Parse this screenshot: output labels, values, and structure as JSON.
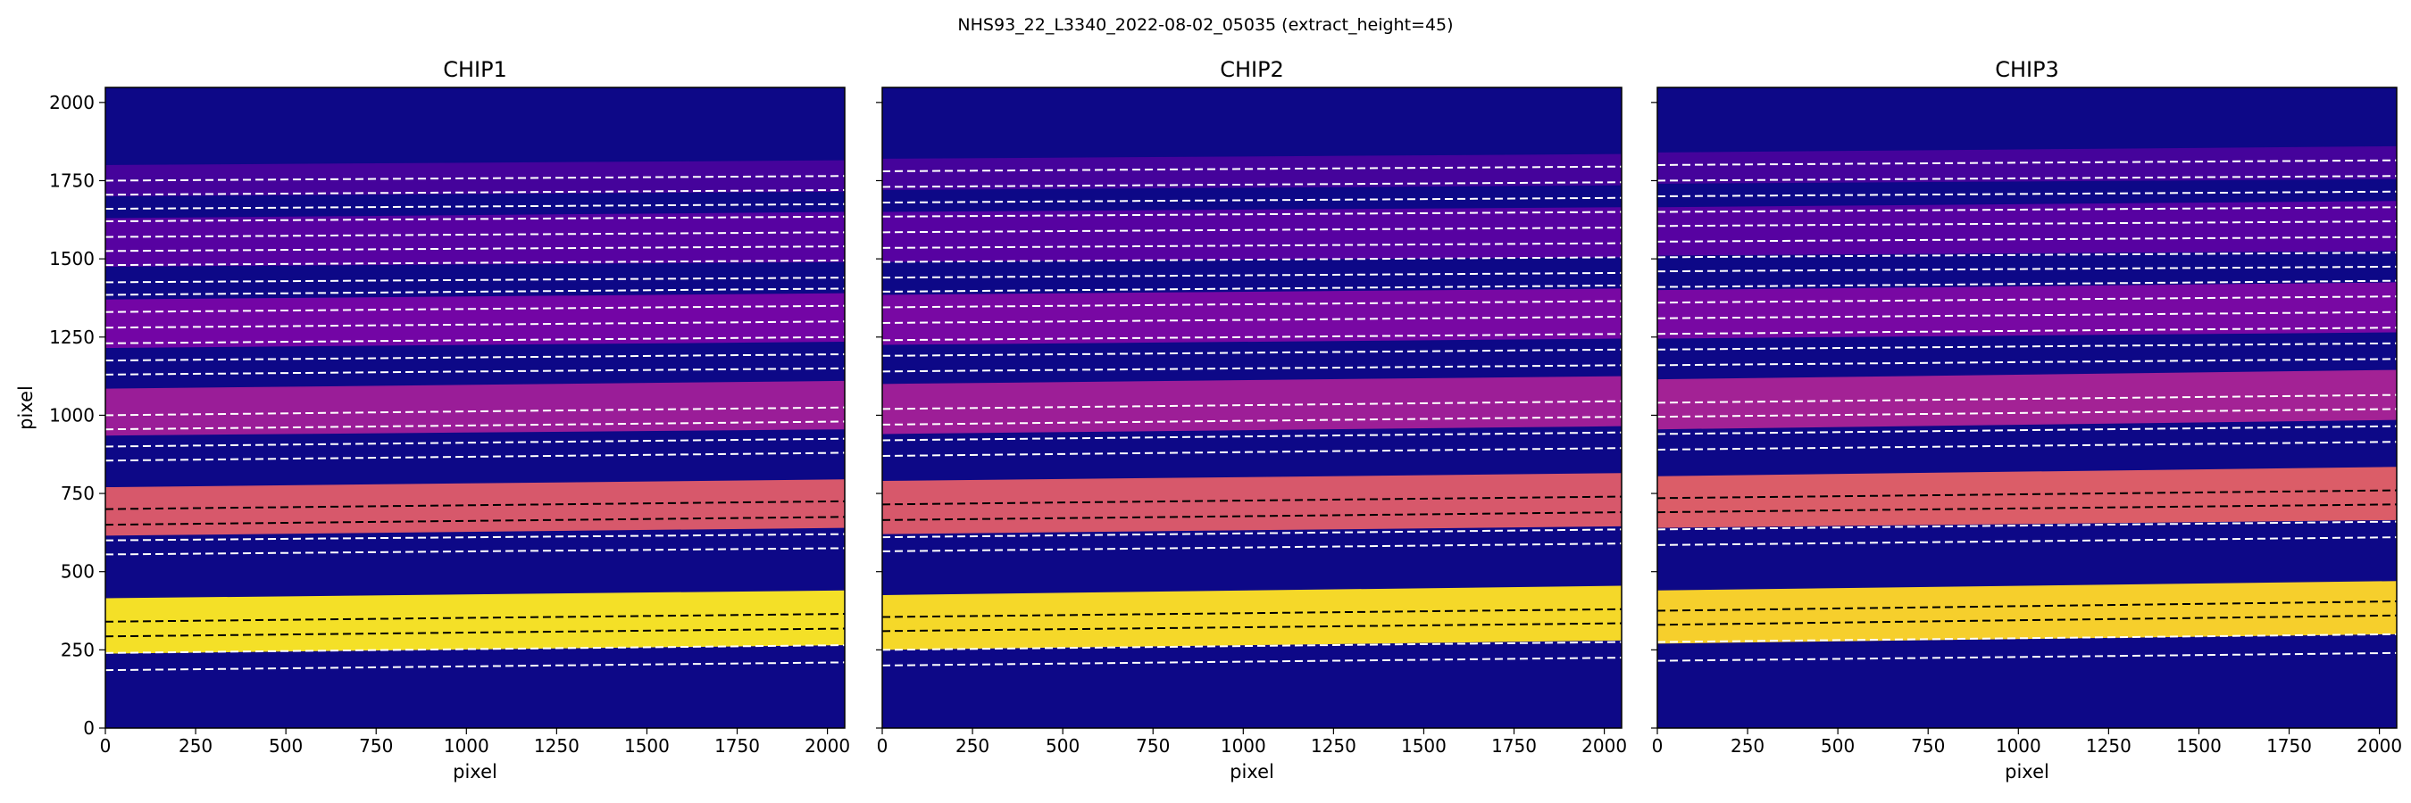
{
  "suptitle": "NHS93_22_L3340_2022-08-02_05035  (extract_height=45)",
  "colors": {
    "background": "#0d0887",
    "figure": "#ffffff",
    "trace_even": "#ffffff",
    "trace_odd": "#000000"
  },
  "chart_data": [
    {
      "type": "heatmap",
      "title": "CHIP1",
      "xlabel": "pixel",
      "ylabel": "pixel",
      "xlim": [
        0,
        2048
      ],
      "ylim": [
        0,
        2048
      ],
      "xticks": [
        0,
        250,
        500,
        750,
        1000,
        1250,
        1500,
        1750,
        2000
      ],
      "yticks": [
        0,
        250,
        500,
        750,
        1000,
        1250,
        1500,
        1750,
        2000
      ],
      "colormap": "plasma",
      "orders": [
        {
          "lower": [
            0,
            238,
            2048,
            265
          ],
          "upper": [
            0,
            415,
            2048,
            440
          ],
          "intensity": 0.97
        },
        {
          "lower": [
            0,
            615,
            2048,
            640
          ],
          "upper": [
            0,
            770,
            2048,
            795
          ],
          "intensity": 0.7
        },
        {
          "lower": [
            0,
            935,
            2048,
            955
          ],
          "upper": [
            0,
            1085,
            2048,
            1110
          ],
          "intensity": 0.42
        },
        {
          "lower": [
            0,
            1215,
            2048,
            1235
          ],
          "upper": [
            0,
            1370,
            2048,
            1390
          ],
          "intensity": 0.28
        },
        {
          "lower": [
            0,
            1475,
            2048,
            1490
          ],
          "upper": [
            0,
            1630,
            2048,
            1650
          ],
          "intensity": 0.2
        },
        {
          "lower": [
            0,
            1700,
            2048,
            1715
          ],
          "upper": [
            0,
            1800,
            2048,
            1815
          ],
          "intensity": 0.15
        }
      ],
      "trace_lines": [
        {
          "y": [
            185,
            210
          ],
          "dark": false
        },
        {
          "y": [
            240,
            265
          ],
          "dark": false
        },
        {
          "y": [
            293,
            318
          ],
          "dark": true
        },
        {
          "y": [
            340,
            365
          ],
          "dark": true
        },
        {
          "y": [
            555,
            575
          ],
          "dark": false
        },
        {
          "y": [
            600,
            620
          ],
          "dark": false
        },
        {
          "y": [
            650,
            675
          ],
          "dark": true
        },
        {
          "y": [
            700,
            725
          ],
          "dark": true
        },
        {
          "y": [
            855,
            880
          ],
          "dark": false
        },
        {
          "y": [
            900,
            925
          ],
          "dark": false
        },
        {
          "y": [
            955,
            980
          ],
          "dark": false
        },
        {
          "y": [
            1000,
            1025
          ],
          "dark": false
        },
        {
          "y": [
            1130,
            1150
          ],
          "dark": false
        },
        {
          "y": [
            1175,
            1195
          ],
          "dark": false
        },
        {
          "y": [
            1230,
            1250
          ],
          "dark": false
        },
        {
          "y": [
            1280,
            1300
          ],
          "dark": false
        },
        {
          "y": [
            1330,
            1350
          ],
          "dark": false
        },
        {
          "y": [
            1385,
            1405
          ],
          "dark": false
        },
        {
          "y": [
            1425,
            1440
          ],
          "dark": false
        },
        {
          "y": [
            1480,
            1495
          ],
          "dark": false
        },
        {
          "y": [
            1525,
            1540
          ],
          "dark": false
        },
        {
          "y": [
            1570,
            1585
          ],
          "dark": false
        },
        {
          "y": [
            1620,
            1635
          ],
          "dark": false
        },
        {
          "y": [
            1660,
            1675
          ],
          "dark": false
        },
        {
          "y": [
            1705,
            1720
          ],
          "dark": false
        },
        {
          "y": [
            1750,
            1765
          ],
          "dark": false
        }
      ]
    },
    {
      "type": "heatmap",
      "title": "CHIP2",
      "xlabel": "pixel",
      "ylabel": "",
      "xlim": [
        0,
        2048
      ],
      "ylim": [
        0,
        2048
      ],
      "xticks": [
        0,
        250,
        500,
        750,
        1000,
        1250,
        1500,
        1750,
        2000
      ],
      "yticks": [],
      "colormap": "plasma",
      "orders": [
        {
          "lower": [
            0,
            250,
            2048,
            280
          ],
          "upper": [
            0,
            425,
            2048,
            455
          ],
          "intensity": 0.96
        },
        {
          "lower": [
            0,
            620,
            2048,
            645
          ],
          "upper": [
            0,
            790,
            2048,
            815
          ],
          "intensity": 0.7
        },
        {
          "lower": [
            0,
            940,
            2048,
            965
          ],
          "upper": [
            0,
            1100,
            2048,
            1125
          ],
          "intensity": 0.43
        },
        {
          "lower": [
            0,
            1225,
            2048,
            1245
          ],
          "upper": [
            0,
            1385,
            2048,
            1405
          ],
          "intensity": 0.3
        },
        {
          "lower": [
            0,
            1490,
            2048,
            1505
          ],
          "upper": [
            0,
            1650,
            2048,
            1665
          ],
          "intensity": 0.2
        },
        {
          "lower": [
            0,
            1720,
            2048,
            1735
          ],
          "upper": [
            0,
            1820,
            2048,
            1835
          ],
          "intensity": 0.15
        }
      ],
      "trace_lines": [
        {
          "y": [
            200,
            225
          ],
          "dark": false
        },
        {
          "y": [
            250,
            275
          ],
          "dark": false
        },
        {
          "y": [
            310,
            335
          ],
          "dark": true
        },
        {
          "y": [
            355,
            380
          ],
          "dark": true
        },
        {
          "y": [
            565,
            590
          ],
          "dark": false
        },
        {
          "y": [
            610,
            635
          ],
          "dark": false
        },
        {
          "y": [
            665,
            690
          ],
          "dark": true
        },
        {
          "y": [
            715,
            740
          ],
          "dark": true
        },
        {
          "y": [
            870,
            895
          ],
          "dark": false
        },
        {
          "y": [
            920,
            945
          ],
          "dark": false
        },
        {
          "y": [
            970,
            995
          ],
          "dark": false
        },
        {
          "y": [
            1020,
            1045
          ],
          "dark": false
        },
        {
          "y": [
            1140,
            1160
          ],
          "dark": false
        },
        {
          "y": [
            1190,
            1210
          ],
          "dark": false
        },
        {
          "y": [
            1240,
            1260
          ],
          "dark": false
        },
        {
          "y": [
            1295,
            1315
          ],
          "dark": false
        },
        {
          "y": [
            1345,
            1365
          ],
          "dark": false
        },
        {
          "y": [
            1395,
            1415
          ],
          "dark": false
        },
        {
          "y": [
            1440,
            1455
          ],
          "dark": false
        },
        {
          "y": [
            1490,
            1505
          ],
          "dark": false
        },
        {
          "y": [
            1535,
            1550
          ],
          "dark": false
        },
        {
          "y": [
            1585,
            1600
          ],
          "dark": false
        },
        {
          "y": [
            1635,
            1650
          ],
          "dark": false
        },
        {
          "y": [
            1680,
            1695
          ],
          "dark": false
        },
        {
          "y": [
            1730,
            1745
          ],
          "dark": false
        },
        {
          "y": [
            1780,
            1795
          ],
          "dark": false
        }
      ]
    },
    {
      "type": "heatmap",
      "title": "CHIP3",
      "xlabel": "pixel",
      "ylabel": "",
      "xlim": [
        0,
        2048
      ],
      "ylim": [
        0,
        2048
      ],
      "xticks": [
        0,
        250,
        500,
        750,
        1000,
        1250,
        1500,
        1750,
        2000
      ],
      "yticks": [],
      "colormap": "plasma",
      "orders": [
        {
          "lower": [
            0,
            270,
            2048,
            300
          ],
          "upper": [
            0,
            440,
            2048,
            470
          ],
          "intensity": 0.95
        },
        {
          "lower": [
            0,
            640,
            2048,
            665
          ],
          "upper": [
            0,
            805,
            2048,
            835
          ],
          "intensity": 0.72
        },
        {
          "lower": [
            0,
            955,
            2048,
            985
          ],
          "upper": [
            0,
            1115,
            2048,
            1145
          ],
          "intensity": 0.45
        },
        {
          "lower": [
            0,
            1245,
            2048,
            1265
          ],
          "upper": [
            0,
            1400,
            2048,
            1425
          ],
          "intensity": 0.3
        },
        {
          "lower": [
            0,
            1510,
            2048,
            1525
          ],
          "upper": [
            0,
            1665,
            2048,
            1685
          ],
          "intensity": 0.2
        },
        {
          "lower": [
            0,
            1740,
            2048,
            1755
          ],
          "upper": [
            0,
            1840,
            2048,
            1860
          ],
          "intensity": 0.15
        }
      ],
      "trace_lines": [
        {
          "y": [
            215,
            240
          ],
          "dark": false
        },
        {
          "y": [
            275,
            300
          ],
          "dark": false
        },
        {
          "y": [
            330,
            360
          ],
          "dark": true
        },
        {
          "y": [
            375,
            405
          ],
          "dark": true
        },
        {
          "y": [
            585,
            610
          ],
          "dark": false
        },
        {
          "y": [
            635,
            660
          ],
          "dark": false
        },
        {
          "y": [
            690,
            715
          ],
          "dark": true
        },
        {
          "y": [
            735,
            760
          ],
          "dark": true
        },
        {
          "y": [
            890,
            915
          ],
          "dark": false
        },
        {
          "y": [
            940,
            965
          ],
          "dark": false
        },
        {
          "y": [
            995,
            1020
          ],
          "dark": false
        },
        {
          "y": [
            1040,
            1065
          ],
          "dark": false
        },
        {
          "y": [
            1160,
            1180
          ],
          "dark": false
        },
        {
          "y": [
            1210,
            1230
          ],
          "dark": false
        },
        {
          "y": [
            1260,
            1280
          ],
          "dark": false
        },
        {
          "y": [
            1310,
            1330
          ],
          "dark": false
        },
        {
          "y": [
            1360,
            1380
          ],
          "dark": false
        },
        {
          "y": [
            1410,
            1430
          ],
          "dark": false
        },
        {
          "y": [
            1460,
            1475
          ],
          "dark": false
        },
        {
          "y": [
            1505,
            1520
          ],
          "dark": false
        },
        {
          "y": [
            1555,
            1570
          ],
          "dark": false
        },
        {
          "y": [
            1605,
            1620
          ],
          "dark": false
        },
        {
          "y": [
            1650,
            1665
          ],
          "dark": false
        },
        {
          "y": [
            1700,
            1715
          ],
          "dark": false
        },
        {
          "y": [
            1750,
            1765
          ],
          "dark": false
        },
        {
          "y": [
            1800,
            1815
          ],
          "dark": false
        }
      ]
    }
  ]
}
